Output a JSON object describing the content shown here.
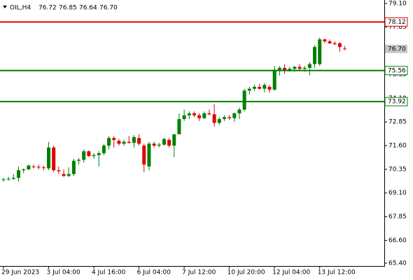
{
  "chart_data": {
    "type": "candlestick",
    "header": {
      "symbol": "OIL,H4",
      "open": "76.72",
      "high": "76.85",
      "low": "76.64",
      "close": "76.70"
    },
    "categories": [
      "29 Jun 2023",
      null,
      null,
      null,
      null,
      null,
      null,
      null,
      null,
      "3 Jul 04:00",
      null,
      null,
      null,
      null,
      null,
      null,
      null,
      null,
      "4 Jul 16:00",
      null,
      null,
      null,
      null,
      null,
      null,
      null,
      null,
      "6 Jul 04:00",
      null,
      null,
      null,
      null,
      null,
      null,
      null,
      null,
      "7 Jul 12:00",
      null,
      null,
      null,
      null,
      null,
      null,
      null,
      null,
      "10 Jul 20:00",
      null,
      null,
      null,
      null,
      null,
      null,
      null,
      null,
      "12 Jul 04:00",
      null,
      null,
      null,
      null,
      null,
      null,
      null,
      null,
      "13 Jul 12:00",
      null,
      null,
      null,
      null,
      null
    ],
    "open": [
      69.78,
      69.82,
      69.85,
      69.9,
      70.3,
      70.35,
      70.5,
      70.48,
      70.45,
      70.4,
      71.5,
      70.3,
      70.1,
      70.0,
      70.1,
      70.8,
      70.85,
      71.3,
      71.05,
      71.1,
      71.2,
      71.6,
      72.0,
      71.85,
      71.7,
      71.8,
      71.75,
      72.0,
      71.6,
      70.5,
      71.7,
      71.6,
      71.65,
      71.9,
      71.6,
      72.2,
      73.0,
      73.2,
      73.3,
      73.2,
      73.05,
      73.3,
      73.25,
      72.8,
      73.0,
      73.1,
      73.05,
      73.3,
      73.5,
      74.5,
      74.6,
      74.7,
      74.6,
      74.7,
      74.55,
      75.6,
      75.7,
      75.55,
      75.65,
      75.75,
      75.65,
      75.7,
      75.9,
      75.9,
      77.2,
      77.1,
      77.0,
      77.0,
      76.72
    ],
    "high": [
      69.9,
      69.95,
      70.1,
      70.5,
      70.4,
      70.6,
      70.6,
      70.6,
      70.55,
      71.8,
      71.6,
      70.5,
      70.35,
      70.45,
      70.9,
      70.95,
      71.4,
      71.35,
      71.2,
      71.3,
      71.7,
      72.1,
      72.1,
      71.95,
      71.9,
      72.1,
      72.15,
      72.2,
      71.7,
      71.8,
      71.8,
      71.75,
      72.0,
      72.0,
      72.2,
      73.3,
      73.5,
      73.4,
      73.4,
      73.3,
      73.4,
      73.5,
      73.8,
      73.1,
      73.2,
      73.2,
      73.35,
      73.6,
      74.6,
      74.7,
      74.8,
      74.85,
      74.9,
      74.8,
      75.8,
      75.8,
      75.9,
      75.75,
      75.8,
      75.9,
      75.8,
      76.0,
      76.9,
      77.3,
      77.25,
      77.2,
      77.1,
      77.05,
      76.85
    ],
    "low": [
      69.7,
      69.75,
      69.8,
      69.7,
      70.15,
      70.3,
      70.4,
      70.35,
      70.3,
      70.3,
      70.2,
      70.1,
      69.95,
      69.95,
      70.0,
      70.6,
      70.7,
      71.0,
      70.9,
      70.5,
      71.1,
      71.4,
      71.5,
      71.6,
      71.6,
      71.7,
      71.5,
      71.6,
      70.2,
      70.3,
      71.5,
      71.5,
      71.6,
      71.5,
      71.0,
      72.2,
      72.9,
      73.0,
      73.1,
      72.9,
      73.0,
      73.2,
      72.6,
      72.7,
      72.9,
      72.95,
      72.85,
      73.0,
      73.4,
      74.3,
      74.5,
      74.55,
      74.4,
      74.4,
      74.5,
      75.3,
      75.4,
      75.5,
      75.5,
      75.6,
      75.5,
      75.3,
      75.7,
      75.8,
      77.0,
      76.95,
      76.9,
      76.55,
      76.64
    ],
    "close": [
      69.82,
      69.85,
      69.9,
      70.3,
      70.35,
      70.55,
      70.48,
      70.45,
      70.42,
      71.5,
      70.3,
      70.25,
      70.0,
      70.1,
      70.8,
      70.85,
      71.3,
      71.05,
      71.1,
      71.2,
      71.6,
      72.0,
      71.9,
      71.7,
      71.8,
      71.75,
      72.05,
      71.7,
      70.6,
      71.7,
      71.6,
      71.65,
      71.95,
      71.6,
      72.2,
      73.0,
      73.2,
      73.3,
      73.2,
      73.05,
      73.3,
      73.25,
      72.8,
      73.0,
      73.1,
      73.05,
      73.3,
      73.5,
      74.5,
      74.6,
      74.7,
      74.6,
      74.8,
      74.55,
      75.6,
      75.7,
      75.55,
      75.65,
      75.75,
      75.65,
      75.7,
      75.9,
      76.8,
      77.2,
      77.1,
      77.0,
      76.95,
      76.8,
      76.7
    ],
    "up_color": "#008000",
    "down_color": "#e00000",
    "ylim": [
      65.25,
      79.28
    ],
    "yticks": [
      {
        "value": 79.1,
        "label": "79.10"
      },
      77.85,
      75.35,
      {
        "value": 74.1,
        "label": "74.10"
      },
      72.85,
      {
        "value": 71.6,
        "label": "71.60"
      },
      70.35,
      {
        "value": 69.1,
        "label": "69.10"
      },
      67.85,
      {
        "value": 66.6,
        "label": "66.60"
      },
      {
        "value": 65.4,
        "label": "65.40"
      }
    ],
    "levels": [
      {
        "value": 78.12,
        "color": "#e00000"
      },
      {
        "value": 75.56,
        "color": "#008000"
      },
      {
        "value": 73.92,
        "color": "#008000"
      }
    ],
    "last": {
      "value": 76.7,
      "label": "76.70"
    }
  }
}
